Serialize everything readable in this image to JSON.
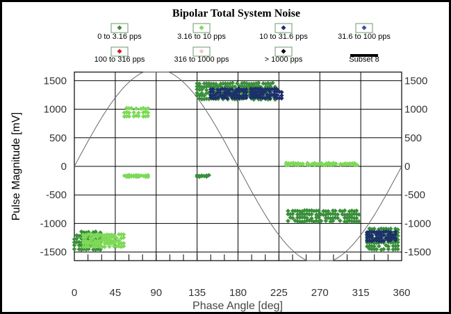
{
  "chart_data": {
    "type": "scatter",
    "title": "Bipolar Total System Noise",
    "xlabel": "Phase Angle [deg]",
    "ylabel": "Pulse Magnitude [mV]",
    "xlim": [
      0,
      360
    ],
    "ylim": [
      -1650,
      1650
    ],
    "xticks": [
      "0",
      "45",
      "90",
      "135",
      "180",
      "225",
      "270",
      "315",
      "360"
    ],
    "yticks": [
      "1500",
      "1000",
      "500",
      "0",
      "-500",
      "-1000",
      "-1500"
    ],
    "grid": true,
    "legend_placement": "top",
    "legend": [
      {
        "label": "0 to 3.16 pps",
        "color": "#3a8f3a"
      },
      {
        "label": "3.16 to 10 pps",
        "color": "#7ed957"
      },
      {
        "label": "10 to 31.6 pps",
        "color": "#1c2f6b"
      },
      {
        "label": "31.6 to 100 pps",
        "color": "#3d4fa0"
      },
      {
        "label": "100 to 316 pps",
        "color": "#cc2222"
      },
      {
        "label": "316 to 1000 pps",
        "color": "#f4c8c8"
      },
      {
        "label": "> 1000 pps",
        "color": "#000000"
      },
      {
        "label": "Subset 8",
        "color": "#000000"
      }
    ],
    "reference_curve": {
      "type": "sine",
      "amplitude": 1700,
      "period_deg": 360
    },
    "clusters": [
      {
        "x": [
          0,
          30
        ],
        "y": [
          -1450,
          -1150
        ],
        "series": "0 to 3.16 pps"
      },
      {
        "x": [
          10,
          55
        ],
        "y": [
          -1400,
          -1200
        ],
        "series": "3.16 to 10 pps"
      },
      {
        "x": [
          55,
          82
        ],
        "y": [
          880,
          1010
        ],
        "series": "3.16 to 10 pps"
      },
      {
        "x": [
          55,
          82
        ],
        "y": [
          -175,
          -160
        ],
        "series": "3.16 to 10 pps"
      },
      {
        "x": [
          135,
          150
        ],
        "y": [
          -175,
          -160
        ],
        "series": "0 to 3.16 pps"
      },
      {
        "x": [
          135,
          222
        ],
        "y": [
          1180,
          1450
        ],
        "series": "0 to 3.16 pps"
      },
      {
        "x": [
          150,
          230
        ],
        "y": [
          1200,
          1350
        ],
        "series": "10 to 31.6 pps"
      },
      {
        "x": [
          233,
          312
        ],
        "y": [
          30,
          50
        ],
        "series": "3.16 to 10 pps"
      },
      {
        "x": [
          235,
          315
        ],
        "y": [
          -960,
          -780
        ],
        "series": "0 to 3.16 pps"
      },
      {
        "x": [
          322,
          358
        ],
        "y": [
          -1450,
          -1100
        ],
        "series": "0 to 3.16 pps"
      },
      {
        "x": [
          322,
          358
        ],
        "y": [
          -1300,
          -1150
        ],
        "series": "10 to 31.6 pps"
      }
    ]
  }
}
